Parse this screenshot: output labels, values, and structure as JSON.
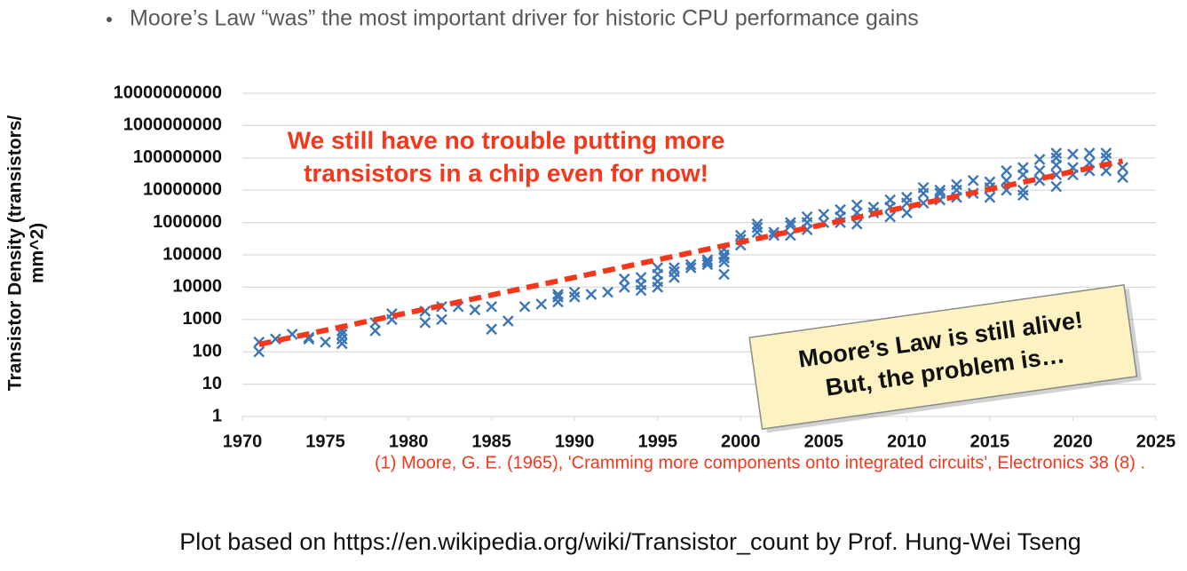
{
  "header": {
    "bullet": "Moore’s Law “was” the most important driver for historic CPU performance gains"
  },
  "chart_data": {
    "type": "scatter",
    "y_label_lines": [
      "Transistor Density (transistors/",
      "mm^2)"
    ],
    "log_y": true,
    "grid": true,
    "color": "#3a76b8",
    "xlim": [
      1970,
      2025
    ],
    "xticks": [
      1970,
      1975,
      1980,
      1985,
      1990,
      1995,
      2000,
      2005,
      2010,
      2015,
      2020,
      2025
    ],
    "ylim": [
      1,
      10000000000
    ],
    "yticks": [
      1,
      10,
      100,
      1000,
      10000,
      100000,
      1000000,
      10000000,
      100000000,
      1000000000,
      10000000000
    ],
    "x": [
      1971,
      1971,
      1972,
      1973,
      1974,
      1974,
      1975,
      1976,
      1976,
      1976,
      1976,
      1978,
      1978,
      1979,
      1979,
      1981,
      1981,
      1982,
      1982,
      1983,
      1984,
      1985,
      1985,
      1986,
      1987,
      1988,
      1989,
      1989,
      1989,
      1990,
      1990,
      1991,
      1992,
      1993,
      1993,
      1994,
      1994,
      1994,
      1995,
      1995,
      1995,
      1995,
      1996,
      1996,
      1996,
      1997,
      1997,
      1998,
      1998,
      1998,
      1999,
      1999,
      1999,
      1999,
      1999,
      2000,
      2000,
      2000,
      2001,
      2001,
      2001,
      2002,
      2002,
      2003,
      2003,
      2003,
      2004,
      2004,
      2004,
      2005,
      2005,
      2006,
      2006,
      2006,
      2007,
      2007,
      2007,
      2008,
      2008,
      2009,
      2009,
      2009,
      2010,
      2010,
      2010,
      2011,
      2011,
      2011,
      2012,
      2012,
      2012,
      2013,
      2013,
      2013,
      2014,
      2014,
      2015,
      2015,
      2015,
      2016,
      2016,
      2016,
      2017,
      2017,
      2017,
      2017,
      2018,
      2018,
      2018,
      2019,
      2019,
      2019,
      2019,
      2019,
      2020,
      2020,
      2020,
      2021,
      2021,
      2021,
      2022,
      2022,
      2022,
      2023,
      2023
    ],
    "values": [
      200,
      100,
      250,
      350,
      250,
      280,
      200,
      450,
      250,
      180,
      350,
      450,
      800,
      1500,
      1000,
      1800,
      800,
      2500,
      1000,
      2500,
      2000,
      2500,
      500,
      900,
      2500,
      3000,
      3500,
      5000,
      6000,
      7000,
      5000,
      6000,
      7000,
      10000,
      18000,
      8000,
      12000,
      20000,
      10000,
      15000,
      25000,
      40000,
      20000,
      40000,
      30000,
      40000,
      50000,
      50000,
      70000,
      60000,
      25000,
      60000,
      100000,
      150000,
      80000,
      200000,
      300000,
      400000,
      500000,
      700000,
      900000,
      400000,
      500000,
      400000,
      800000,
      1000000,
      600000,
      1000000,
      1500000,
      1000000,
      1800000,
      1000000,
      1500000,
      2500000,
      900000,
      2000000,
      3500000,
      2000000,
      3000000,
      1500000,
      3000000,
      5000000,
      2000000,
      4000000,
      6000000,
      4000000,
      8000000,
      12000000,
      5000000,
      8000000,
      10000000,
      6000000,
      10000000,
      15000000,
      8000000,
      20000000,
      6000000,
      12000000,
      18000000,
      10000000,
      20000000,
      40000000,
      7000000,
      10000000,
      30000000,
      50000000,
      20000000,
      40000000,
      90000000,
      13000000,
      30000000,
      60000000,
      100000000,
      140000000,
      30000000,
      50000000,
      130000000,
      40000000,
      70000000,
      140000000,
      40000000,
      100000000,
      140000000,
      25000000,
      50000000
    ],
    "trend": {
      "x": [
        1971,
        2023
      ],
      "values": [
        170,
        80000000
      ],
      "color": "#f5381c"
    },
    "annotation_red": [
      "We still have no trouble putting more",
      "transistors in a chip even for now!"
    ],
    "annotation_box": [
      "Moore’s Law is still alive!",
      "But, the problem is…"
    ],
    "citation": "(1) Moore, G. E. (1965), 'Cramming more components onto integrated circuits', Electronics 38 (8) ."
  },
  "footer": "Plot based on https://en.wikipedia.org/wiki/Transistor_count by Prof. Hung-Wei Tseng"
}
